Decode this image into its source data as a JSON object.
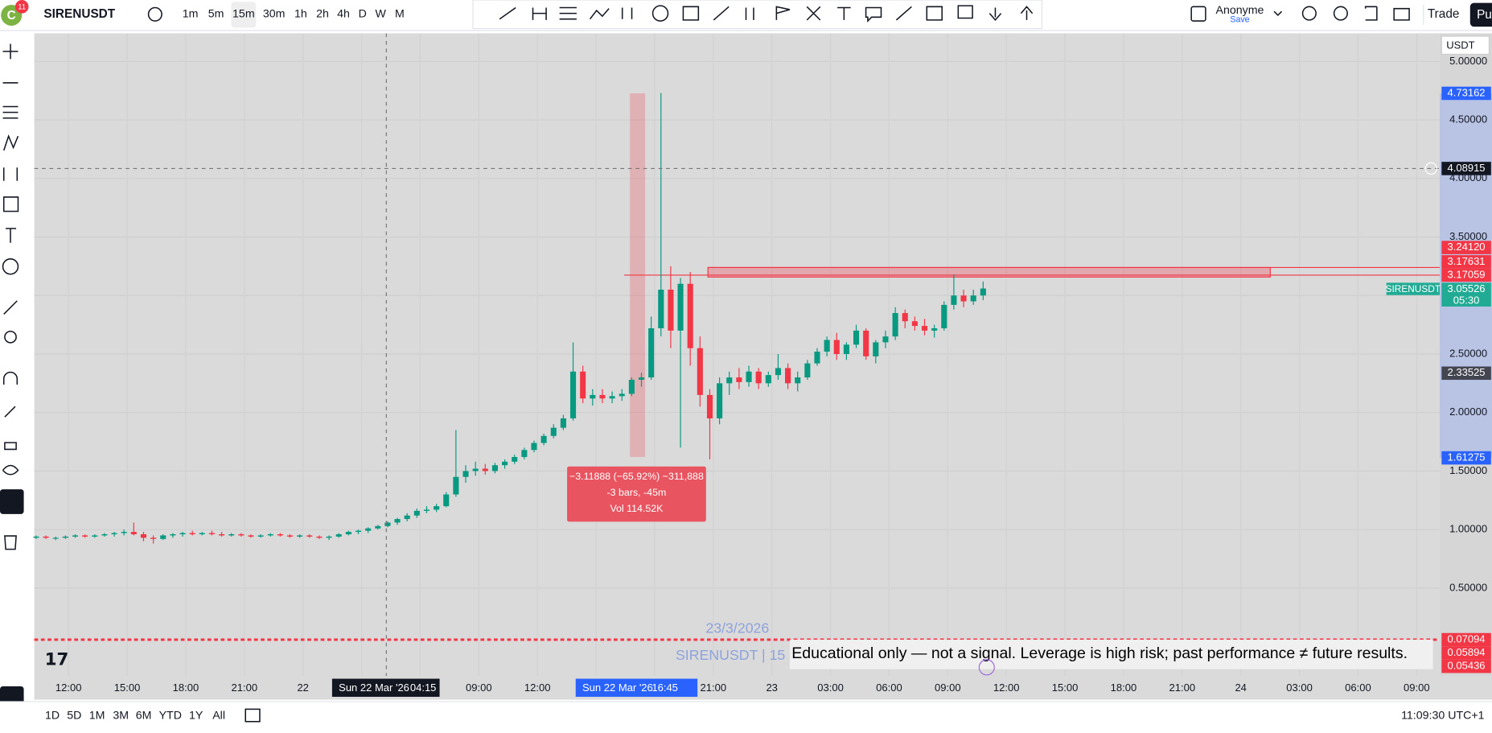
{
  "toolbar": {
    "avatar": "C",
    "badge": "11",
    "symbol": "SIRENUSDT",
    "intervals": [
      "1m",
      "5m",
      "15m",
      "30m",
      "1h",
      "2h",
      "4h",
      "D",
      "W",
      "M"
    ],
    "account": "Anonyme",
    "save": "Save",
    "trade": "Trade",
    "publish": "Pu"
  },
  "chart_data": {
    "type": "candlestick",
    "up_color": "#089981",
    "down_color": "#f23645",
    "grid": true,
    "currency": "USDT",
    "ylim": [
      -0.25,
      5.24
    ],
    "yticks": [
      {
        "value": 5,
        "label": "5.00000"
      },
      {
        "value": 4.5,
        "label": "4.50000"
      },
      {
        "value": 4,
        "label": "4.00000"
      },
      {
        "value": 3.5,
        "label": "3.50000"
      },
      {
        "value": 3,
        "label": "3.00000"
      },
      {
        "value": 2.5,
        "label": "2.50000"
      },
      {
        "value": 2,
        "label": "2.00000"
      },
      {
        "value": 1.5,
        "label": "1.50000"
      },
      {
        "value": 1,
        "label": "1.00000"
      },
      {
        "value": 0.5,
        "label": "0.50000"
      }
    ],
    "x_labels": [
      "12:00",
      "15:00",
      "18:00",
      "21:00",
      "22",
      null,
      null,
      "09:00",
      "12:00",
      null,
      null,
      "21:00",
      "23",
      "03:00",
      "06:00",
      "09:00",
      "12:00",
      "15:00",
      "18:00",
      "21:00",
      "24",
      "03:00",
      "06:00",
      "09:00"
    ],
    "candles": [
      [
        0.93,
        0.95,
        0.92,
        0.94
      ],
      [
        0.94,
        0.95,
        0.92,
        0.93
      ],
      [
        0.93,
        0.94,
        0.91,
        0.93
      ],
      [
        0.93,
        0.95,
        0.92,
        0.94
      ],
      [
        0.94,
        0.96,
        0.93,
        0.95
      ],
      [
        0.95,
        0.96,
        0.93,
        0.94
      ],
      [
        0.94,
        0.96,
        0.93,
        0.95
      ],
      [
        0.95,
        0.97,
        0.94,
        0.96
      ],
      [
        0.96,
        0.98,
        0.94,
        0.97
      ],
      [
        0.97,
        1.0,
        0.95,
        0.98
      ],
      [
        0.98,
        1.06,
        0.95,
        0.96
      ],
      [
        0.96,
        0.98,
        0.9,
        0.93
      ],
      [
        0.93,
        0.95,
        0.88,
        0.92
      ],
      [
        0.92,
        0.96,
        0.91,
        0.95
      ],
      [
        0.95,
        0.97,
        0.93,
        0.96
      ],
      [
        0.96,
        0.98,
        0.94,
        0.97
      ],
      [
        0.97,
        0.99,
        0.95,
        0.96
      ],
      [
        0.96,
        0.98,
        0.95,
        0.97
      ],
      [
        0.97,
        0.99,
        0.95,
        0.96
      ],
      [
        0.96,
        0.98,
        0.94,
        0.95
      ],
      [
        0.95,
        0.97,
        0.94,
        0.96
      ],
      [
        0.96,
        0.97,
        0.94,
        0.95
      ],
      [
        0.95,
        0.96,
        0.93,
        0.94
      ],
      [
        0.94,
        0.96,
        0.93,
        0.95
      ],
      [
        0.95,
        0.97,
        0.94,
        0.96
      ],
      [
        0.96,
        0.97,
        0.94,
        0.95
      ],
      [
        0.95,
        0.96,
        0.93,
        0.94
      ],
      [
        0.94,
        0.96,
        0.93,
        0.95
      ],
      [
        0.95,
        0.96,
        0.93,
        0.94
      ],
      [
        0.94,
        0.95,
        0.92,
        0.93
      ],
      [
        0.93,
        0.95,
        0.91,
        0.94
      ],
      [
        0.94,
        0.97,
        0.93,
        0.96
      ],
      [
        0.96,
        0.99,
        0.95,
        0.98
      ],
      [
        0.98,
        1.0,
        0.96,
        0.99
      ],
      [
        0.99,
        1.02,
        0.97,
        1.01
      ],
      [
        1.01,
        1.04,
        1.0,
        1.03
      ],
      [
        1.03,
        1.07,
        1.02,
        1.06
      ],
      [
        1.06,
        1.1,
        1.04,
        1.09
      ],
      [
        1.09,
        1.14,
        1.07,
        1.12
      ],
      [
        1.12,
        1.18,
        1.1,
        1.16
      ],
      [
        1.16,
        1.2,
        1.14,
        1.17
      ],
      [
        1.17,
        1.22,
        1.15,
        1.2
      ],
      [
        1.2,
        1.32,
        1.19,
        1.3
      ],
      [
        1.3,
        1.85,
        1.28,
        1.45
      ],
      [
        1.45,
        1.55,
        1.4,
        1.5
      ],
      [
        1.5,
        1.58,
        1.46,
        1.52
      ],
      [
        1.52,
        1.56,
        1.47,
        1.5
      ],
      [
        1.5,
        1.57,
        1.48,
        1.55
      ],
      [
        1.55,
        1.6,
        1.52,
        1.58
      ],
      [
        1.58,
        1.64,
        1.56,
        1.62
      ],
      [
        1.62,
        1.7,
        1.6,
        1.68
      ],
      [
        1.68,
        1.76,
        1.66,
        1.74
      ],
      [
        1.74,
        1.82,
        1.72,
        1.8
      ],
      [
        1.8,
        1.9,
        1.78,
        1.87
      ],
      [
        1.87,
        1.98,
        1.85,
        1.95
      ],
      [
        1.95,
        2.6,
        1.93,
        2.35
      ],
      [
        2.35,
        2.4,
        2.08,
        2.12
      ],
      [
        2.12,
        2.2,
        2.06,
        2.15
      ],
      [
        2.15,
        2.2,
        2.08,
        2.12
      ],
      [
        2.12,
        2.18,
        2.08,
        2.14
      ],
      [
        2.14,
        2.2,
        2.1,
        2.16
      ],
      [
        2.16,
        2.3,
        2.14,
        2.28
      ],
      [
        2.28,
        2.34,
        2.22,
        2.3
      ],
      [
        2.3,
        2.82,
        2.28,
        2.72
      ],
      [
        2.72,
        4.73,
        2.65,
        3.05
      ],
      [
        3.05,
        3.25,
        2.55,
        2.7
      ],
      [
        2.7,
        3.15,
        1.7,
        3.1
      ],
      [
        3.1,
        3.2,
        2.4,
        2.55
      ],
      [
        2.55,
        2.65,
        2.05,
        2.15
      ],
      [
        2.15,
        2.2,
        1.6,
        1.95
      ],
      [
        1.95,
        2.3,
        1.9,
        2.25
      ],
      [
        2.25,
        2.35,
        2.15,
        2.3
      ],
      [
        2.3,
        2.38,
        2.2,
        2.26
      ],
      [
        2.26,
        2.4,
        2.22,
        2.35
      ],
      [
        2.35,
        2.38,
        2.2,
        2.25
      ],
      [
        2.25,
        2.35,
        2.22,
        2.32
      ],
      [
        2.32,
        2.5,
        2.28,
        2.38
      ],
      [
        2.38,
        2.42,
        2.2,
        2.25
      ],
      [
        2.25,
        2.35,
        2.18,
        2.3
      ],
      [
        2.3,
        2.45,
        2.28,
        2.42
      ],
      [
        2.42,
        2.55,
        2.4,
        2.52
      ],
      [
        2.52,
        2.65,
        2.48,
        2.62
      ],
      [
        2.62,
        2.68,
        2.45,
        2.5
      ],
      [
        2.5,
        2.6,
        2.45,
        2.58
      ],
      [
        2.58,
        2.75,
        2.55,
        2.7
      ],
      [
        2.7,
        2.72,
        2.45,
        2.48
      ],
      [
        2.48,
        2.62,
        2.42,
        2.6
      ],
      [
        2.6,
        2.7,
        2.55,
        2.65
      ],
      [
        2.65,
        2.9,
        2.62,
        2.85
      ],
      [
        2.85,
        2.88,
        2.72,
        2.78
      ],
      [
        2.78,
        2.82,
        2.7,
        2.74
      ],
      [
        2.74,
        2.8,
        2.66,
        2.7
      ],
      [
        2.7,
        2.75,
        2.64,
        2.72
      ],
      [
        2.72,
        2.95,
        2.7,
        2.92
      ],
      [
        2.92,
        3.18,
        2.88,
        3.0
      ],
      [
        3.0,
        3.05,
        2.9,
        2.95
      ],
      [
        2.95,
        3.05,
        2.92,
        3.0
      ],
      [
        3.0,
        3.12,
        2.96,
        3.06
      ]
    ]
  },
  "price_labels": [
    {
      "value": 4.73162,
      "color": "#2962ff"
    },
    {
      "value": 4.08915,
      "color": "#131722"
    },
    {
      "value": 3.2412,
      "label": "3.24120",
      "color": "#f23645"
    },
    {
      "value": 3.17631,
      "color": "#f23645"
    },
    {
      "value": 3.17059,
      "color": "#f23645"
    },
    {
      "value": 2.33525,
      "color": "#434651"
    },
    {
      "value": 1.61275,
      "color": "#2962ff"
    },
    {
      "value": 0.07094,
      "color": "#f23645"
    },
    {
      "value": 0.05894,
      "color": "#f23645"
    },
    {
      "value": 0.05436,
      "color": "#f23645"
    }
  ],
  "symbol_label": {
    "name": "SIRENUSDT",
    "value": 3.05526,
    "countdown": "05:30"
  },
  "crosshair": {
    "time_left": "Sun 22 Mar '26",
    "clock_left": "04:15",
    "time_right": "Sun 22 Mar '26",
    "clock_right": "16:45"
  },
  "measure": {
    "line1": "−3.11888 (−65.92%) −311,888",
    "line2": "-3 bars, -45m",
    "line3": "Vol 114.52K"
  },
  "watermark": {
    "date": "23/3/2026",
    "symbol": "SIRENUSDT | 15",
    "disclaimer": "Educational only — not a signal. Leverage is high risk; past performance ≠ future results."
  },
  "bottom_bar": {
    "ranges": [
      "1D",
      "5D",
      "1M",
      "3M",
      "6M",
      "YTD",
      "1Y",
      "All"
    ],
    "clock": "11:09:30 UTC+1"
  }
}
